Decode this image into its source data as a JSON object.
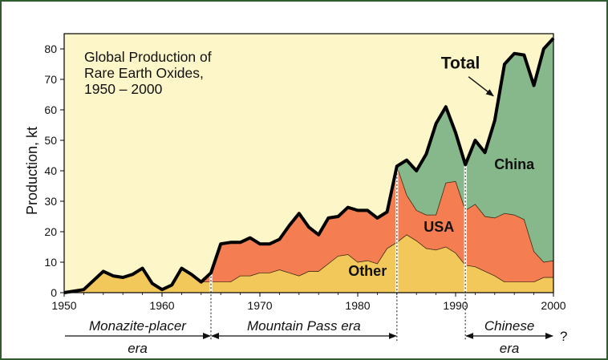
{
  "chart_data": {
    "type": "area",
    "title_lines": [
      "Global Production of",
      "Rare Earth Oxides,",
      "1950 – 2000"
    ],
    "ylabel": "Production, kt",
    "xlabel": "",
    "xlim": [
      1950,
      2000
    ],
    "ylim": [
      0,
      85
    ],
    "x_ticks": [
      1950,
      1960,
      1970,
      1980,
      1990,
      2000
    ],
    "y_ticks": [
      0,
      10,
      20,
      30,
      40,
      50,
      60,
      70,
      80
    ],
    "stacked": true,
    "grid": false,
    "background_color": "#fdf6c8",
    "series": [
      {
        "name": "Other",
        "color": "#f2c85b",
        "points": [
          [
            1950,
            0
          ],
          [
            1952,
            1
          ],
          [
            1954,
            7
          ],
          [
            1955,
            5.5
          ],
          [
            1956,
            5
          ],
          [
            1957,
            6
          ],
          [
            1958,
            8
          ],
          [
            1959,
            3
          ],
          [
            1960,
            1
          ],
          [
            1961,
            2.5
          ],
          [
            1962,
            8
          ],
          [
            1963,
            6
          ],
          [
            1964,
            3.5
          ],
          [
            1965,
            3.5
          ],
          [
            1966,
            3.5
          ],
          [
            1967,
            3.5
          ],
          [
            1968,
            5.5
          ],
          [
            1969,
            5.5
          ],
          [
            1970,
            6.5
          ],
          [
            1971,
            6.5
          ],
          [
            1972,
            7.5
          ],
          [
            1973,
            6.5
          ],
          [
            1974,
            5.5
          ],
          [
            1975,
            7
          ],
          [
            1976,
            7
          ],
          [
            1977,
            9.5
          ],
          [
            1978,
            12
          ],
          [
            1979,
            12.5
          ],
          [
            1980,
            10
          ],
          [
            1981,
            10.5
          ],
          [
            1982,
            9.5
          ],
          [
            1983,
            14.5
          ],
          [
            1984,
            16.5
          ],
          [
            1985,
            19
          ],
          [
            1986,
            17
          ],
          [
            1987,
            14.5
          ],
          [
            1988,
            14
          ],
          [
            1989,
            15
          ],
          [
            1990,
            13
          ],
          [
            1991,
            9
          ],
          [
            1992,
            8.5
          ],
          [
            1993,
            7
          ],
          [
            1994,
            5.5
          ],
          [
            1995,
            3.5
          ],
          [
            1996,
            3.5
          ],
          [
            1997,
            3.5
          ],
          [
            1998,
            3.5
          ],
          [
            1999,
            5
          ],
          [
            2000,
            5
          ]
        ]
      },
      {
        "name": "USA",
        "color": "#f47d52",
        "points": [
          [
            1964,
            0
          ],
          [
            1965,
            3
          ],
          [
            1966,
            12.5
          ],
          [
            1967,
            13
          ],
          [
            1968,
            11
          ],
          [
            1969,
            12.5
          ],
          [
            1970,
            9.5
          ],
          [
            1971,
            9.5
          ],
          [
            1972,
            10
          ],
          [
            1973,
            15.5
          ],
          [
            1974,
            20.5
          ],
          [
            1975,
            14.5
          ],
          [
            1976,
            12
          ],
          [
            1977,
            15
          ],
          [
            1978,
            13
          ],
          [
            1979,
            15.5
          ],
          [
            1980,
            17
          ],
          [
            1981,
            16.5
          ],
          [
            1982,
            15
          ],
          [
            1983,
            12
          ],
          [
            1984,
            25
          ],
          [
            1985,
            13
          ],
          [
            1986,
            10
          ],
          [
            1987,
            11
          ],
          [
            1988,
            11.5
          ],
          [
            1989,
            21
          ],
          [
            1990,
            23.5
          ],
          [
            1991,
            18
          ],
          [
            1992,
            20.5
          ],
          [
            1993,
            18
          ],
          [
            1994,
            19
          ],
          [
            1995,
            22.5
          ],
          [
            1996,
            22
          ],
          [
            1997,
            20.5
          ],
          [
            1998,
            10
          ],
          [
            1999,
            5
          ],
          [
            2000,
            5.5
          ]
        ]
      },
      {
        "name": "China",
        "color": "#86b88b",
        "points": [
          [
            1983,
            0
          ],
          [
            1984,
            0
          ],
          [
            1985,
            11.5
          ],
          [
            1986,
            13
          ],
          [
            1987,
            20
          ],
          [
            1988,
            30
          ],
          [
            1989,
            25
          ],
          [
            1990,
            16
          ],
          [
            1991,
            15
          ],
          [
            1992,
            21
          ],
          [
            1993,
            21
          ],
          [
            1994,
            32
          ],
          [
            1995,
            49
          ],
          [
            1996,
            53
          ],
          [
            1997,
            54
          ],
          [
            1998,
            54.5
          ],
          [
            1999,
            70
          ],
          [
            2000,
            73
          ]
        ]
      }
    ],
    "total": {
      "name": "Total",
      "values": [
        [
          1950,
          0
        ],
        [
          1952,
          1
        ],
        [
          1954,
          7
        ],
        [
          1955,
          5.5
        ],
        [
          1956,
          5
        ],
        [
          1957,
          6
        ],
        [
          1958,
          8
        ],
        [
          1959,
          3
        ],
        [
          1960,
          1
        ],
        [
          1961,
          2.5
        ],
        [
          1962,
          8
        ],
        [
          1963,
          6
        ],
        [
          1964,
          3.5
        ],
        [
          1965,
          6.5
        ],
        [
          1966,
          16
        ],
        [
          1967,
          16.5
        ],
        [
          1968,
          16.5
        ],
        [
          1969,
          18
        ],
        [
          1970,
          16
        ],
        [
          1971,
          16
        ],
        [
          1972,
          17.5
        ],
        [
          1973,
          22
        ],
        [
          1974,
          26
        ],
        [
          1975,
          21.5
        ],
        [
          1976,
          19
        ],
        [
          1977,
          24.5
        ],
        [
          1978,
          25
        ],
        [
          1979,
          28
        ],
        [
          1980,
          27
        ],
        [
          1981,
          27
        ],
        [
          1982,
          24.5
        ],
        [
          1983,
          26.5
        ],
        [
          1984,
          41.5
        ],
        [
          1985,
          43.5
        ],
        [
          1986,
          40
        ],
        [
          1987,
          45.5
        ],
        [
          1988,
          55.5
        ],
        [
          1989,
          61
        ],
        [
          1990,
          52.5
        ],
        [
          1991,
          42
        ],
        [
          1992,
          50
        ],
        [
          1993,
          46
        ],
        [
          1994,
          56.5
        ],
        [
          1995,
          75
        ],
        [
          1996,
          78.5
        ],
        [
          1997,
          78
        ],
        [
          1998,
          68
        ],
        [
          1999,
          80
        ],
        [
          2000,
          83.5
        ]
      ]
    },
    "series_labels": [
      {
        "text": "Other",
        "x": 1981,
        "y": 5.5
      },
      {
        "text": "USA",
        "x": 1988.3,
        "y": 20
      },
      {
        "text": "China",
        "x": 1996,
        "y": 40.5
      },
      {
        "text": "Total",
        "x": 1990.5,
        "y": 73.5
      }
    ],
    "era_dividers": [
      1965,
      1984,
      1991
    ],
    "eras": [
      {
        "line1": "Monazite-placer",
        "line2": "era",
        "from": 1950,
        "to": 1965,
        "arrow_start": false,
        "arrow_end": true
      },
      {
        "line1": "Mountain  Pass  era",
        "line2": "",
        "from": 1965,
        "to": 1984,
        "arrow_start": true,
        "arrow_end": true
      },
      {
        "line1": "Chinese",
        "line2": "era",
        "from": 1991,
        "to": 2000,
        "arrow_start": true,
        "arrow_end": true,
        "suffix": "?"
      }
    ],
    "legend": "none"
  }
}
